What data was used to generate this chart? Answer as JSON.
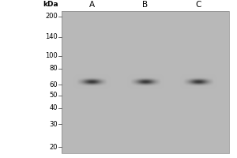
{
  "gel_bg_color": [
    184,
    184,
    184
  ],
  "outer_bg_color": "#ffffff",
  "lane_labels": [
    "A",
    "B",
    "C"
  ],
  "kda_markers": [
    200,
    140,
    100,
    80,
    60,
    50,
    40,
    30,
    20
  ],
  "band_kda": 63,
  "band_color": "#222222",
  "kda_label": "kDa",
  "label_fontsize": 6.5,
  "marker_fontsize": 6.0,
  "lane_label_fontsize": 7.5
}
